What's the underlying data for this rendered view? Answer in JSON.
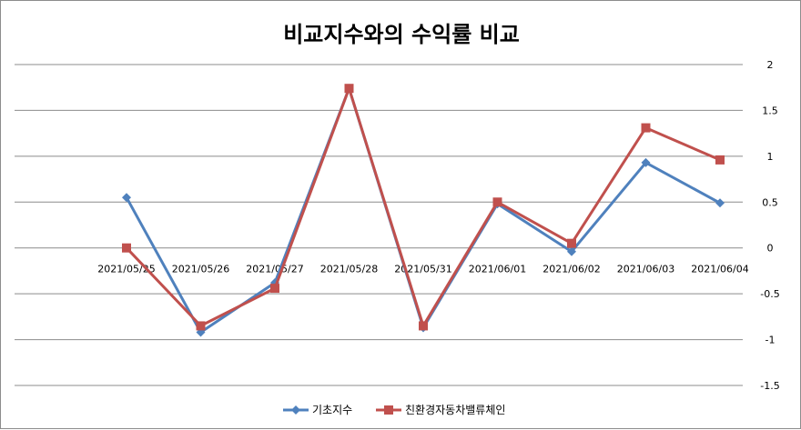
{
  "chart_data": {
    "type": "line",
    "title": "비교지수와의 수익률 비교",
    "categories": [
      "2021/05/25",
      "2021/05/26",
      "2021/05/27",
      "2021/05/28",
      "2021/05/31",
      "2021/06/01",
      "2021/06/02",
      "2021/06/03",
      "2021/06/04"
    ],
    "ylim": [
      -1.5,
      2
    ],
    "yticks": [
      2,
      1.5,
      1,
      0.5,
      0,
      -0.5,
      -1,
      -1.5
    ],
    "ytick_labels": [
      "2",
      "1.5",
      "1",
      "0.5",
      "0",
      "-0.5",
      "-1",
      "-1.5"
    ],
    "grid": true,
    "legend_position": "bottom",
    "series": [
      {
        "name": "기초지수",
        "color": "#4F81BD",
        "marker": "diamond",
        "values": [
          0.55,
          -0.92,
          -0.38,
          1.74,
          -0.87,
          0.48,
          -0.04,
          0.93,
          0.49
        ]
      },
      {
        "name": "친환경자동차밸류체인",
        "color": "#C0504D",
        "marker": "square",
        "values": [
          0.0,
          -0.85,
          -0.44,
          1.74,
          -0.85,
          0.5,
          0.05,
          1.31,
          0.96
        ]
      }
    ]
  }
}
